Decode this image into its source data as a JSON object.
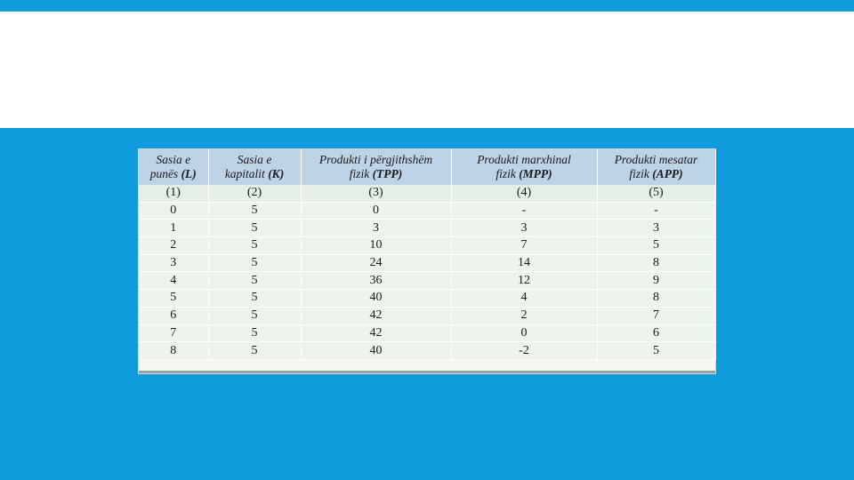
{
  "table": {
    "headers": [
      {
        "line1": "Sasia e",
        "line2": "punës",
        "abbr": "(L)"
      },
      {
        "line1": "Sasia e",
        "line2": "kapitalit",
        "abbr": "(K)"
      },
      {
        "line1": "Produkti i përgjithshëm",
        "line2": "fizik",
        "abbr": "(TPP)"
      },
      {
        "line1": "Produkti  marxhinal",
        "line2": "fizik",
        "abbr": "(MPP)"
      },
      {
        "line1": "Produkti mesatar",
        "line2": "fizik",
        "abbr": "(APP)"
      }
    ],
    "column_numbers": [
      "(1)",
      "(2)",
      "(3)",
      "(4)",
      "(5)"
    ],
    "rows": [
      [
        "0",
        "5",
        "0",
        "-",
        "-"
      ],
      [
        "1",
        "5",
        "3",
        "3",
        "3"
      ],
      [
        "2",
        "5",
        "10",
        "7",
        "5"
      ],
      [
        "3",
        "5",
        "24",
        "14",
        "8"
      ],
      [
        "4",
        "5",
        "36",
        "12",
        "9"
      ],
      [
        "5",
        "5",
        "40",
        "4",
        "8"
      ],
      [
        "6",
        "5",
        "42",
        "2",
        "7"
      ],
      [
        "7",
        "5",
        "42",
        "0",
        "6"
      ],
      [
        "8",
        "5",
        "40",
        "-2",
        "5"
      ]
    ]
  }
}
